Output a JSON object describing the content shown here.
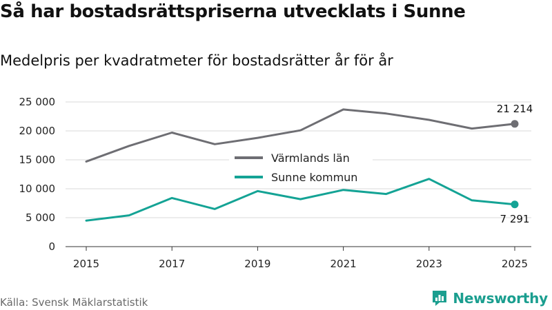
{
  "title": "Så har bostadsrättspriserna utvecklats i Sunne",
  "subtitle": "Medelpris per kvadratmeter för bostadsrätter år för år",
  "source": "Källa: Svensk Mäklarstatistik",
  "brand": "Newsworthy",
  "colors": {
    "county": "#6e6e73",
    "municipality": "#14a395",
    "grid": "#d9d9d9",
    "brand": "#1a9e8f"
  },
  "chart_data": {
    "type": "line",
    "title": "Så har bostadsrättspriserna utvecklats i Sunne",
    "subtitle": "Medelpris per kvadratmeter för bostadsrätter år för år",
    "xlabel": "",
    "ylabel": "",
    "x": [
      2015,
      2016,
      2017,
      2018,
      2019,
      2020,
      2021,
      2022,
      2023,
      2024,
      2025
    ],
    "xticks": [
      "2015",
      "2017",
      "2019",
      "2021",
      "2023",
      "2025"
    ],
    "yticks": [
      "0",
      "5 000",
      "10 000",
      "15 000",
      "20 000",
      "25 000"
    ],
    "ylim": [
      0,
      25000
    ],
    "grid": true,
    "legend_position": "center",
    "series": [
      {
        "name": "Värmlands län",
        "values": [
          14700,
          17400,
          19700,
          17700,
          18800,
          20100,
          23700,
          23000,
          21900,
          20400,
          21214
        ],
        "end_label": "21 214"
      },
      {
        "name": "Sunne kommun",
        "values": [
          4500,
          5400,
          8400,
          6500,
          9600,
          8200,
          9800,
          9100,
          11700,
          8000,
          7291
        ],
        "end_label": "7 291"
      }
    ]
  }
}
